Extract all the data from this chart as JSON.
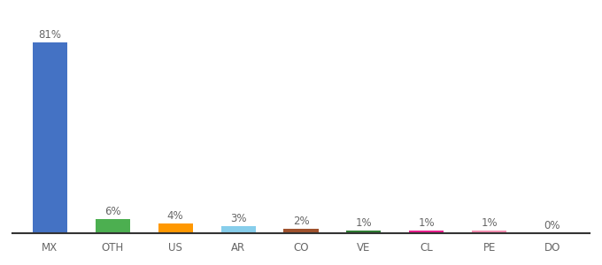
{
  "categories": [
    "MX",
    "OTH",
    "US",
    "AR",
    "CO",
    "VE",
    "CL",
    "PE",
    "DO"
  ],
  "values": [
    81,
    6,
    4,
    3,
    2,
    1,
    1,
    1,
    0
  ],
  "labels": [
    "81%",
    "6%",
    "4%",
    "3%",
    "2%",
    "1%",
    "1%",
    "1%",
    "0%"
  ],
  "colors": [
    "#4472c4",
    "#4caf50",
    "#ff9800",
    "#87ceeb",
    "#a0522d",
    "#2e7d32",
    "#e91e8c",
    "#f48fb1",
    "#9e9e9e"
  ],
  "ylim": [
    0,
    90
  ],
  "background_color": "#ffffff",
  "label_fontsize": 8.5,
  "tick_fontsize": 8.5,
  "label_color": "#666666",
  "tick_color": "#666666",
  "bar_width": 0.55
}
